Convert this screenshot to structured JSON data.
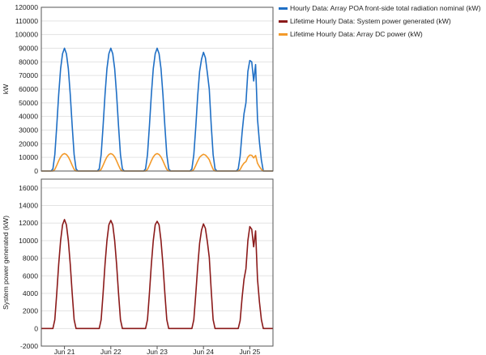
{
  "colors": {
    "poa": "#1f6fc5",
    "system": "#8b1a1a",
    "dc": "#f39a2a",
    "grid": "#e3e3e3",
    "frame": "#555555"
  },
  "legend": {
    "items": [
      {
        "label": "Hourly Data: Array POA front-side total radiation nominal (kW)",
        "color": "#1f6fc5"
      },
      {
        "label": "Lifetime Hourly Data: System power generated (kW)",
        "color": "#8b1a1a"
      },
      {
        "label": "Lifetime Hourly Data: Array DC power (kW)",
        "color": "#f39a2a"
      }
    ]
  },
  "chart_data": [
    {
      "type": "line",
      "title": "",
      "xlabel": "",
      "ylabel": "kW",
      "xlim": [
        0,
        120
      ],
      "ylim": [
        0,
        120000
      ],
      "yticks": [
        0,
        10000,
        20000,
        30000,
        40000,
        50000,
        60000,
        70000,
        80000,
        90000,
        100000,
        110000,
        120000
      ],
      "xtick_labels": [],
      "grid": true,
      "legend_position": "right",
      "series": [
        {
          "name": "Hourly Data: Array POA front-side total radiation nominal (kW)",
          "color": "#1f6fc5",
          "points": [
            [
              0,
              0
            ],
            [
              5,
              0
            ],
            [
              6,
              1500
            ],
            [
              7,
              12000
            ],
            [
              8,
              33000
            ],
            [
              9,
              56000
            ],
            [
              10,
              75000
            ],
            [
              11,
              86000
            ],
            [
              12,
              90000
            ],
            [
              13,
              86000
            ],
            [
              14,
              75000
            ],
            [
              15,
              56000
            ],
            [
              16,
              33000
            ],
            [
              17,
              12000
            ],
            [
              18,
              1500
            ],
            [
              19,
              0
            ],
            [
              29,
              0
            ],
            [
              30,
              1500
            ],
            [
              31,
              12000
            ],
            [
              32,
              33000
            ],
            [
              33,
              56000
            ],
            [
              34,
              75000
            ],
            [
              35,
              86000
            ],
            [
              36,
              90000
            ],
            [
              37,
              86000
            ],
            [
              38,
              75000
            ],
            [
              39,
              56000
            ],
            [
              40,
              33000
            ],
            [
              41,
              12000
            ],
            [
              42,
              1500
            ],
            [
              43,
              0
            ],
            [
              53,
              0
            ],
            [
              54,
              1500
            ],
            [
              55,
              12000
            ],
            [
              56,
              33000
            ],
            [
              57,
              56000
            ],
            [
              58,
              75000
            ],
            [
              59,
              86000
            ],
            [
              60,
              90000
            ],
            [
              61,
              86000
            ],
            [
              62,
              75000
            ],
            [
              63,
              56000
            ],
            [
              64,
              33000
            ],
            [
              65,
              12000
            ],
            [
              66,
              1500
            ],
            [
              67,
              0
            ],
            [
              77,
              0
            ],
            [
              78,
              1500
            ],
            [
              79,
              12000
            ],
            [
              80,
              32000
            ],
            [
              81,
              55000
            ],
            [
              82,
              73000
            ],
            [
              83,
              82000
            ],
            [
              84,
              87000
            ],
            [
              85,
              83000
            ],
            [
              86,
              72000
            ],
            [
              87,
              60000
            ],
            [
              88,
              34000
            ],
            [
              89,
              12000
            ],
            [
              90,
              1500
            ],
            [
              91,
              0
            ],
            [
              101,
              0
            ],
            [
              102,
              1500
            ],
            [
              103,
              11000
            ],
            [
              104,
              28000
            ],
            [
              105,
              42000
            ],
            [
              106,
              50000
            ],
            [
              107,
              73000
            ],
            [
              108,
              81000
            ],
            [
              109,
              80000
            ],
            [
              110,
              66000
            ],
            [
              111,
              78000
            ],
            [
              112,
              38000
            ],
            [
              113,
              21000
            ],
            [
              114,
              8000
            ],
            [
              115,
              0
            ],
            [
              120,
              0
            ]
          ]
        },
        {
          "name": "Lifetime Hourly Data: Array DC power (kW)",
          "color": "#f39a2a",
          "points": [
            [
              0,
              0
            ],
            [
              6,
              0
            ],
            [
              7,
              1200
            ],
            [
              8,
              4200
            ],
            [
              9,
              7500
            ],
            [
              10,
              10300
            ],
            [
              11,
              12100
            ],
            [
              12,
              12800
            ],
            [
              13,
              12100
            ],
            [
              14,
              10300
            ],
            [
              15,
              7500
            ],
            [
              16,
              4200
            ],
            [
              17,
              1200
            ],
            [
              18,
              0
            ],
            [
              30,
              0
            ],
            [
              31,
              1200
            ],
            [
              32,
              4200
            ],
            [
              33,
              7500
            ],
            [
              34,
              10300
            ],
            [
              35,
              12100
            ],
            [
              36,
              12800
            ],
            [
              37,
              12100
            ],
            [
              38,
              10300
            ],
            [
              39,
              7500
            ],
            [
              40,
              4200
            ],
            [
              41,
              1200
            ],
            [
              42,
              0
            ],
            [
              54,
              0
            ],
            [
              55,
              1200
            ],
            [
              56,
              4200
            ],
            [
              57,
              7500
            ],
            [
              58,
              10300
            ],
            [
              59,
              12100
            ],
            [
              60,
              12800
            ],
            [
              61,
              12100
            ],
            [
              62,
              10300
            ],
            [
              63,
              7500
            ],
            [
              64,
              4200
            ],
            [
              65,
              1200
            ],
            [
              66,
              0
            ],
            [
              78,
              0
            ],
            [
              79,
              1200
            ],
            [
              80,
              4100
            ],
            [
              81,
              7300
            ],
            [
              82,
              10100
            ],
            [
              83,
              11400
            ],
            [
              84,
              12300
            ],
            [
              85,
              11700
            ],
            [
              86,
              10200
            ],
            [
              87,
              8300
            ],
            [
              88,
              4600
            ],
            [
              89,
              1200
            ],
            [
              90,
              0
            ],
            [
              102,
              0
            ],
            [
              103,
              1100
            ],
            [
              104,
              3800
            ],
            [
              105,
              5800
            ],
            [
              106,
              6900
            ],
            [
              107,
              10200
            ],
            [
              108,
              11700
            ],
            [
              109,
              11500
            ],
            [
              110,
              9600
            ],
            [
              111,
              11400
            ],
            [
              112,
              5700
            ],
            [
              113,
              3200
            ],
            [
              114,
              1200
            ],
            [
              115,
              0
            ],
            [
              120,
              0
            ]
          ]
        }
      ]
    },
    {
      "type": "line",
      "title": "",
      "xlabel": "",
      "ylabel": "System power generated (kW)",
      "xlim": [
        0,
        120
      ],
      "ylim": [
        -2000,
        17000
      ],
      "yticks": [
        -2000,
        0,
        2000,
        4000,
        6000,
        8000,
        10000,
        12000,
        14000,
        16000
      ],
      "x_categories": [
        12,
        36,
        60,
        84,
        108
      ],
      "xtick_labels": [
        "Jun 21",
        "Jun 22",
        "Jun 23",
        "Jun 24",
        "Jun 25"
      ],
      "grid": true,
      "series": [
        {
          "name": "Lifetime Hourly Data: System power generated (kW)",
          "color": "#8b1a1a",
          "points": [
            [
              0,
              0
            ],
            [
              6,
              0
            ],
            [
              7,
              1000
            ],
            [
              8,
              4000
            ],
            [
              9,
              7300
            ],
            [
              10,
              10000
            ],
            [
              11,
              11800
            ],
            [
              12,
              12400
            ],
            [
              13,
              11800
            ],
            [
              14,
              10000
            ],
            [
              15,
              7300
            ],
            [
              16,
              4000
            ],
            [
              17,
              1000
            ],
            [
              18,
              0
            ],
            [
              30,
              0
            ],
            [
              31,
              1000
            ],
            [
              32,
              4000
            ],
            [
              33,
              7300
            ],
            [
              34,
              10000
            ],
            [
              35,
              11800
            ],
            [
              36,
              12300
            ],
            [
              37,
              11800
            ],
            [
              38,
              10000
            ],
            [
              39,
              7300
            ],
            [
              40,
              4000
            ],
            [
              41,
              1000
            ],
            [
              42,
              0
            ],
            [
              54,
              0
            ],
            [
              55,
              1000
            ],
            [
              56,
              4000
            ],
            [
              57,
              7300
            ],
            [
              58,
              10000
            ],
            [
              59,
              11800
            ],
            [
              60,
              12200
            ],
            [
              61,
              11800
            ],
            [
              62,
              10000
            ],
            [
              63,
              7300
            ],
            [
              64,
              4000
            ],
            [
              65,
              1000
            ],
            [
              66,
              0
            ],
            [
              78,
              0
            ],
            [
              79,
              1000
            ],
            [
              80,
              3900
            ],
            [
              81,
              7000
            ],
            [
              82,
              9700
            ],
            [
              83,
              11200
            ],
            [
              84,
              11900
            ],
            [
              85,
              11400
            ],
            [
              86,
              9900
            ],
            [
              87,
              8100
            ],
            [
              88,
              4400
            ],
            [
              89,
              1000
            ],
            [
              90,
              0
            ],
            [
              102,
              0
            ],
            [
              103,
              900
            ],
            [
              104,
              3500
            ],
            [
              105,
              5600
            ],
            [
              106,
              6800
            ],
            [
              107,
              10000
            ],
            [
              108,
              11600
            ],
            [
              109,
              11300
            ],
            [
              110,
              9300
            ],
            [
              111,
              11100
            ],
            [
              112,
              5600
            ],
            [
              113,
              3000
            ],
            [
              114,
              1000
            ],
            [
              115,
              0
            ],
            [
              120,
              0
            ]
          ]
        }
      ]
    }
  ]
}
